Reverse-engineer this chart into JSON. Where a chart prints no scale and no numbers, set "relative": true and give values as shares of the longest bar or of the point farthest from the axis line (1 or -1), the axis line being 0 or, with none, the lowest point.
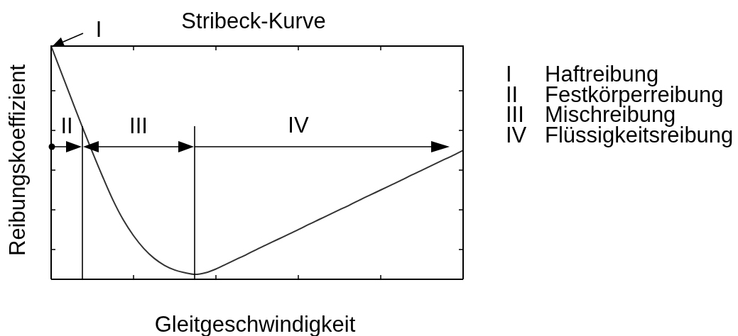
{
  "chart_data": {
    "type": "line",
    "title": "Stribeck-Kurve",
    "xlabel": "Gleitgeschwindigkeit",
    "ylabel": "Reibungskoeffizient",
    "relative": true,
    "line_style": "solid",
    "color": "#333333",
    "categories": [
      null,
      null,
      null,
      null,
      null,
      null,
      null,
      null,
      null,
      null,
      null,
      null,
      null,
      null,
      null,
      null,
      null,
      null,
      null,
      null,
      null,
      null,
      null,
      null,
      null,
      null,
      null,
      null,
      null,
      null,
      null,
      null,
      null,
      null,
      null,
      null,
      null,
      null,
      null,
      null,
      null
    ],
    "values": [
      1,
      0.885,
      0.77,
      0.656,
      0.546,
      0.44,
      0.34,
      0.255,
      0.187,
      0.132,
      0.09,
      0.06,
      0.04,
      0.028,
      0.021,
      0.028,
      0.044,
      0.065,
      0.086,
      0.107,
      0.129,
      0.15,
      0.171,
      0.192,
      0.213,
      0.235,
      0.256,
      0.277,
      0.298,
      0.319,
      0.341,
      0.362,
      0.383,
      0.404,
      0.425,
      0.447,
      0.468,
      0.489,
      0.51,
      0.531,
      0.553
    ],
    "annotations": [
      "I",
      "II",
      "III",
      "IV",
      "I Haftreibung",
      "II Festkörperreibung",
      "III Mischreibung",
      "IV Flüssigkeitsreibung"
    ]
  }
}
